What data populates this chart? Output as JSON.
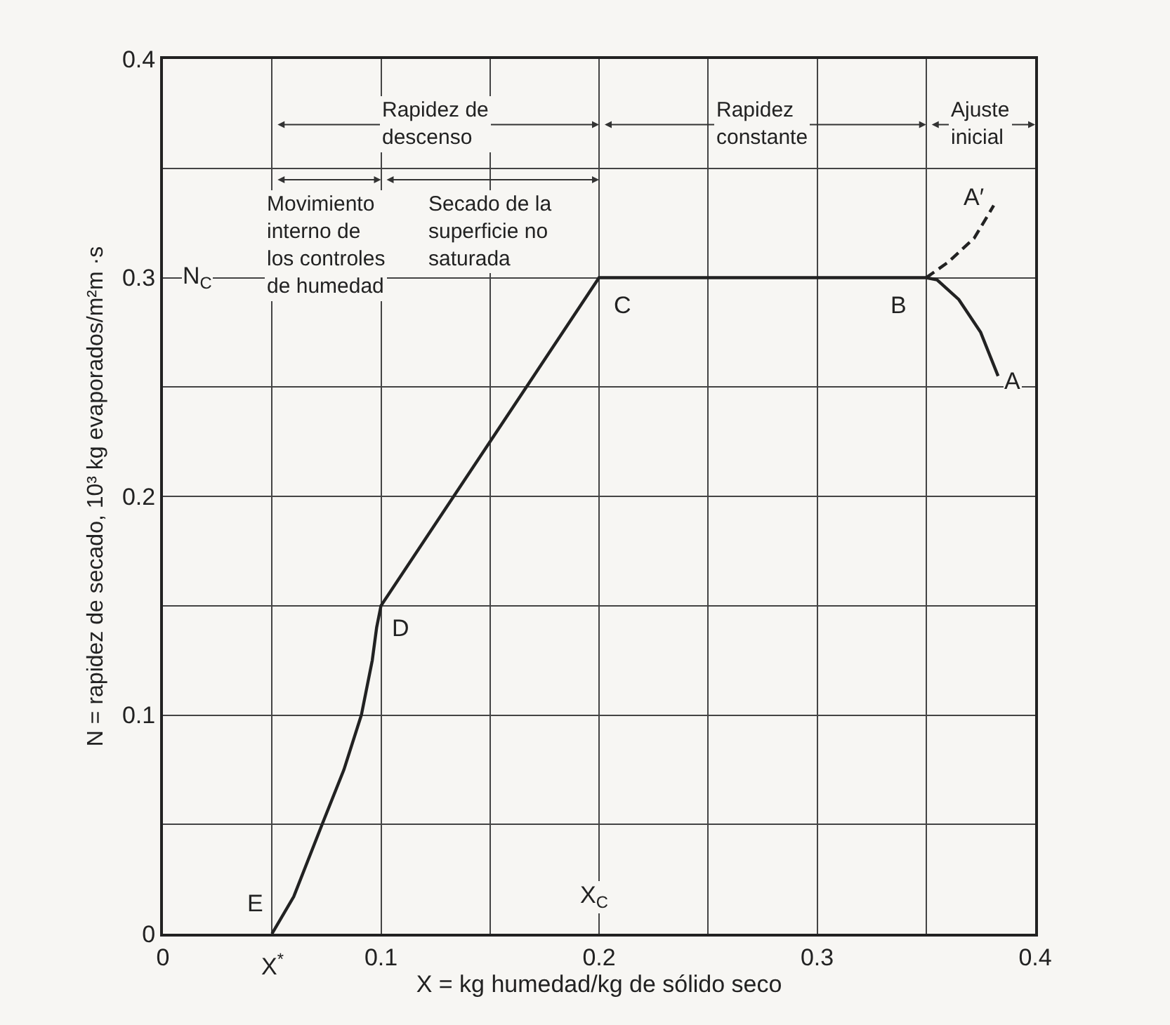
{
  "chart_data": {
    "type": "line",
    "xlabel": "X = kg humedad/kg de sólido seco",
    "ylabel": "N = rapidez de secado, 10³ kg evaporados/m²m ·s",
    "xlim": [
      0,
      0.4
    ],
    "ylim": [
      0,
      0.4
    ],
    "xticks": [
      0,
      {
        "value": 0.05,
        "label": null
      },
      0.1,
      {
        "value": 0.15,
        "label": null
      },
      0.2,
      {
        "value": 0.25,
        "label": null
      },
      0.3,
      {
        "value": 0.35,
        "label": null
      },
      0.4
    ],
    "yticks": [
      0,
      {
        "value": 0.05,
        "label": null
      },
      0.1,
      {
        "value": 0.15,
        "label": null
      },
      0.2,
      {
        "value": 0.25,
        "label": null
      },
      0.3,
      {
        "value": 0.35,
        "label": null
      },
      0.4
    ],
    "grid": true,
    "marker": "none",
    "series": [
      {
        "color": "#222222",
        "line_style": "solid",
        "x": [
          0.05,
          0.06,
          0.073,
          0.083,
          0.091,
          0.096,
          0.098,
          0.1,
          0.2,
          0.35,
          0.355,
          0.365,
          0.375,
          0.383
        ],
        "values": [
          0,
          0.017,
          0.05,
          0.075,
          0.1,
          0.125,
          0.14,
          0.15,
          0.3,
          0.3,
          0.299,
          0.29,
          0.275,
          0.255
        ]
      },
      {
        "color": "#222222",
        "line_style": "dashed",
        "x": [
          0.35,
          0.36,
          0.372,
          0.381
        ],
        "values": [
          0.3,
          0.307,
          0.318,
          0.333
        ]
      }
    ],
    "annotations": [
      "Rapidez de descenso",
      "Rapidez constante",
      "Ajuste inicial",
      "Movimiento interno de los controles de humedad",
      "Secado de la superficie no saturada",
      "X$_{C}$",
      "N$_{C}$",
      {
        "text": "A",
        "x": 0.383,
        "y": 0.255
      },
      {
        "text": "A′",
        "x": 0.381,
        "y": 0.333
      },
      {
        "text": "B",
        "x": 0.35,
        "y": 0.3
      },
      {
        "text": "C",
        "x": 0.2,
        "y": 0.3
      },
      {
        "text": "D",
        "x": 0.1,
        "y": 0.15
      },
      {
        "text": "E",
        "x": 0.05,
        "y": 0
      },
      {
        "text": "X$^{*}$",
        "x": 0.05,
        "y": 0
      }
    ]
  }
}
